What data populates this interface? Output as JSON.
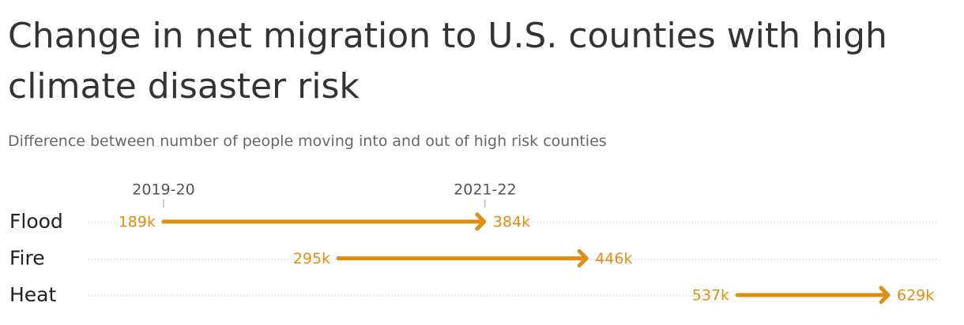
{
  "chart_data": {
    "type": "arrow",
    "title": "Change in net migration to U.S. counties with high climate disaster risk",
    "subtitle": "Difference between number of people moving into and out of high risk counties",
    "categories": [
      "Flood",
      "Fire",
      "Heat"
    ],
    "series": [
      {
        "name": "2019-20",
        "color": "#e08e12",
        "values": [
          189000,
          295000,
          537000
        ],
        "value_labels": [
          "189k",
          "295k",
          "537k"
        ]
      },
      {
        "name": "2021-22",
        "color": "#e08e12",
        "values": [
          384000,
          446000,
          629000
        ],
        "value_labels": [
          "384k",
          "446k",
          "629k"
        ]
      }
    ]
  }
}
